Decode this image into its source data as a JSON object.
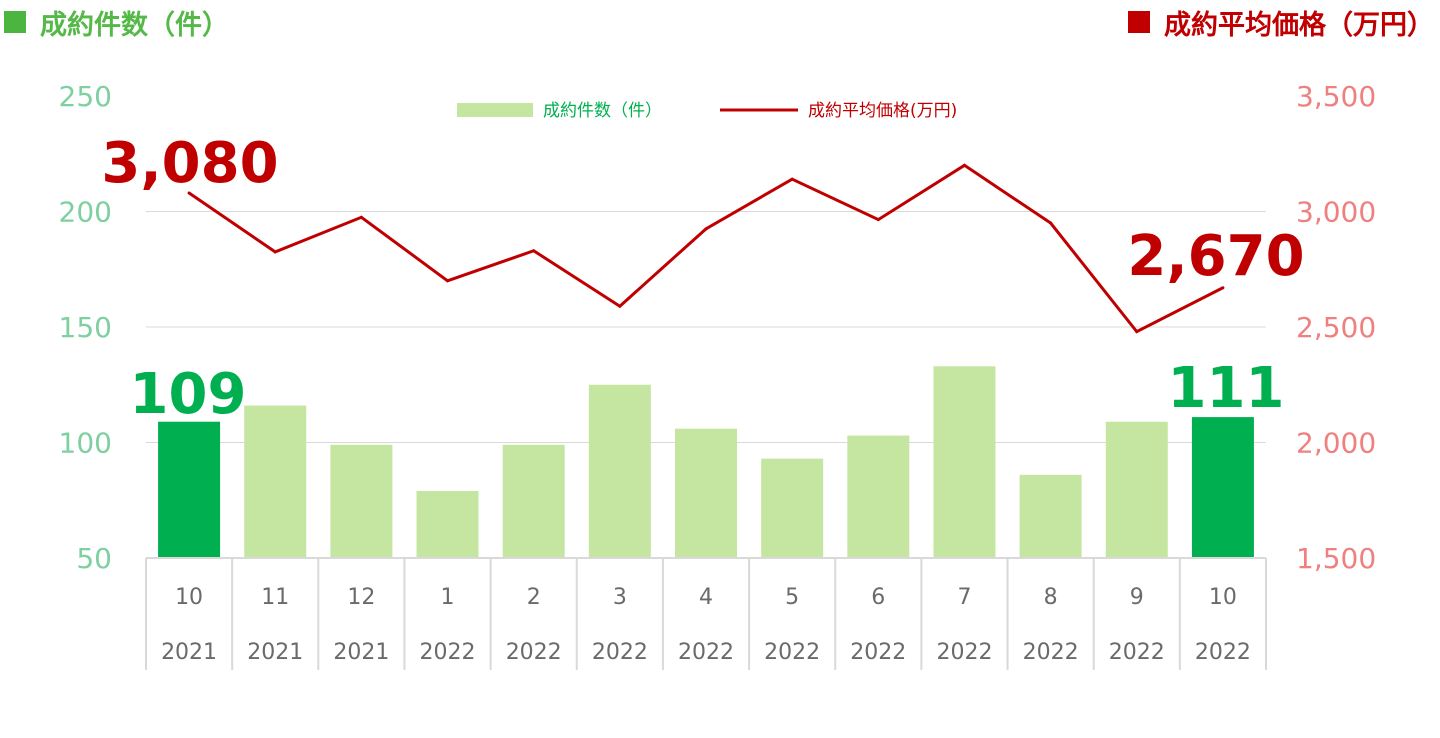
{
  "header": {
    "left_title": "成約件数（件）",
    "right_title": "成約平均価格（万円）"
  },
  "colors": {
    "bar": "#c5e6a1",
    "bar_highlight": "#00b050",
    "line": "#c00000",
    "left_axis": "#7fd0a0",
    "right_axis": "#f08080",
    "grid": "#d9d9d9"
  },
  "chart_data": {
    "type": "bar",
    "categories": [
      [
        "10",
        "2021"
      ],
      [
        "11",
        "2021"
      ],
      [
        "12",
        "2021"
      ],
      [
        "1",
        "2022"
      ],
      [
        "2",
        "2022"
      ],
      [
        "3",
        "2022"
      ],
      [
        "4",
        "2022"
      ],
      [
        "5",
        "2022"
      ],
      [
        "6",
        "2022"
      ],
      [
        "7",
        "2022"
      ],
      [
        "8",
        "2022"
      ],
      [
        "9",
        "2022"
      ],
      [
        "10",
        "2022"
      ]
    ],
    "series": [
      {
        "name": "成約件数（件）",
        "type": "bar",
        "axis": "left",
        "values": [
          109,
          116,
          99,
          79,
          99,
          125,
          106,
          93,
          103,
          133,
          86,
          109,
          111
        ],
        "highlight_indices": [
          0,
          12
        ]
      },
      {
        "name": "成約平均価格(万円)",
        "type": "line",
        "axis": "right",
        "values": [
          3080,
          2825,
          2975,
          2700,
          2830,
          2590,
          2925,
          3140,
          2965,
          3200,
          2950,
          2480,
          2670
        ]
      }
    ],
    "left_axis": {
      "ylim": [
        50,
        250
      ],
      "ticks": [
        "50",
        "100",
        "150",
        "200",
        "250"
      ]
    },
    "right_axis": {
      "ylim": [
        1500,
        3500
      ],
      "ticks": [
        "1,500",
        "2,000",
        "2,500",
        "3,000",
        "3,500"
      ]
    },
    "annotations": [
      {
        "series": 1,
        "index": 0,
        "text": "3,080"
      },
      {
        "series": 1,
        "index": 12,
        "text": "2,670"
      },
      {
        "series": 0,
        "index": 0,
        "text": "109"
      },
      {
        "series": 0,
        "index": 12,
        "text": "111"
      }
    ],
    "legend": {
      "placement": "top-center"
    },
    "grid": true
  }
}
